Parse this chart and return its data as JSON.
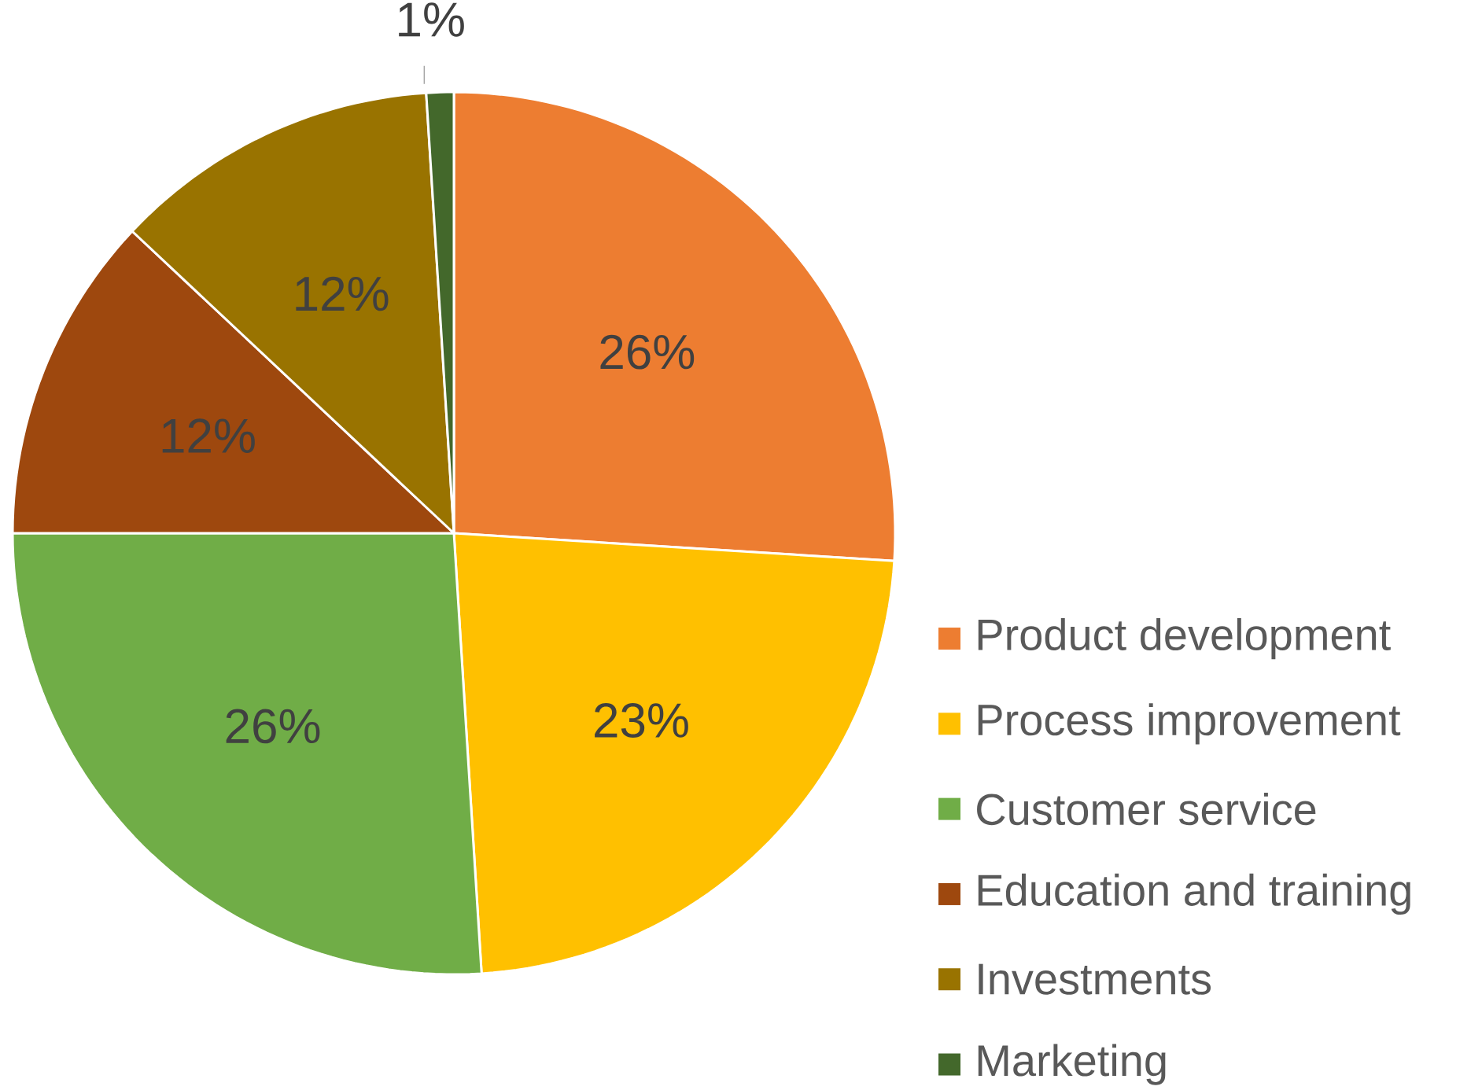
{
  "chart_data": {
    "type": "pie",
    "categories": [
      "Product development",
      "Process improvement",
      "Customer service",
      "Education and training",
      "Investments",
      "Marketing"
    ],
    "values": [
      26,
      23,
      26,
      12,
      12,
      1
    ],
    "colors": [
      "#ed7d31",
      "#ffc000",
      "#70ad47",
      "#9e480e",
      "#997300",
      "#43682b"
    ],
    "value_labels": [
      "26%",
      "23%",
      "26%",
      "12%",
      "12%",
      "1%"
    ],
    "legend": "bottom right"
  }
}
